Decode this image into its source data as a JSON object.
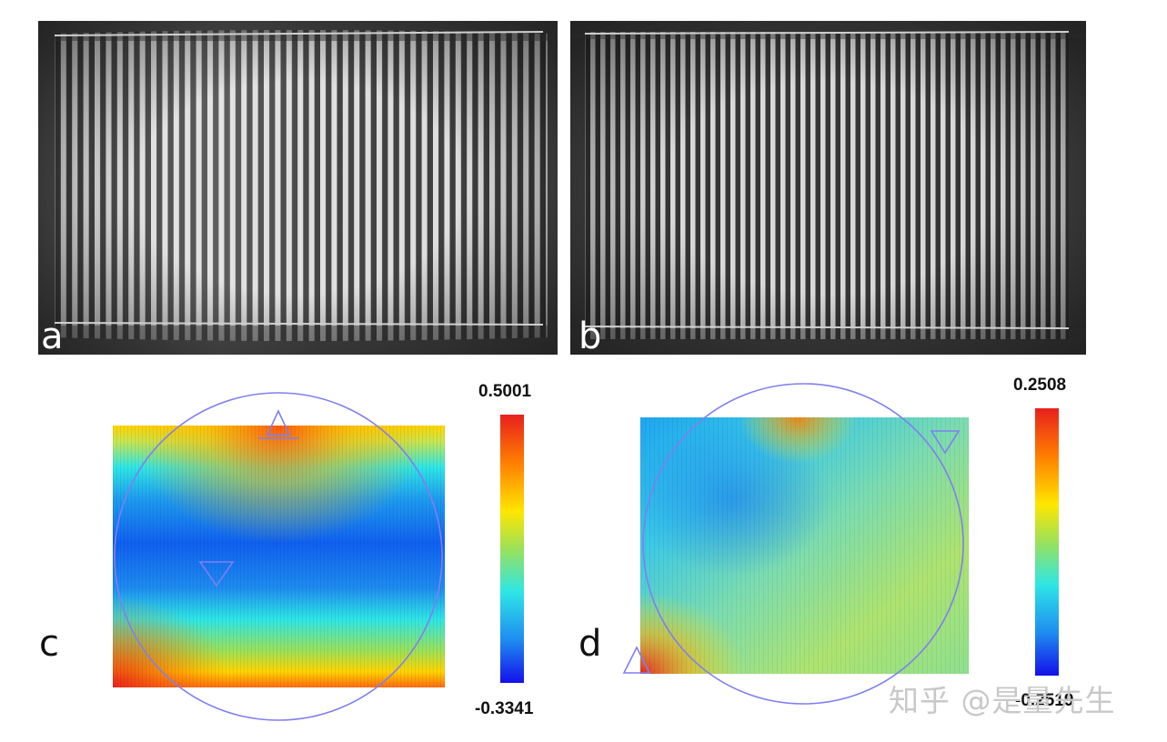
{
  "panels": {
    "a": {
      "label": "a"
    },
    "b": {
      "label": "b"
    },
    "c": {
      "label": "c",
      "colorbar": {
        "max": "0.5001",
        "min": "-0.3341"
      }
    },
    "d": {
      "label": "d",
      "colorbar": {
        "max": "0.2508",
        "min": "-0.2519"
      }
    }
  },
  "colors": {
    "colormap": [
      "#e8201c",
      "#ff7f00",
      "#ffe600",
      "#9be15a",
      "#2ee6e6",
      "#1e8cf0",
      "#1410ea"
    ],
    "aperture_circle": "#7f7ff0",
    "watermark": "#c8c8c8"
  },
  "watermark": {
    "text": "知乎 @是量先生"
  }
}
